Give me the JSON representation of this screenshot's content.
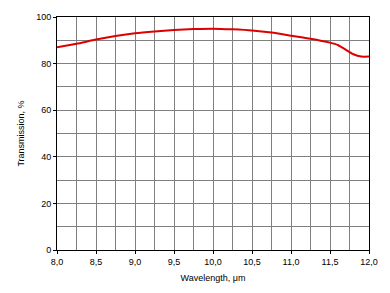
{
  "chart_data": {
    "type": "line",
    "x_label": "Wavelength, μm",
    "y_label": "Transmission, %",
    "x": [
      8.0,
      8.25,
      8.5,
      8.75,
      9.0,
      9.25,
      9.5,
      9.75,
      10.0,
      10.25,
      10.5,
      10.75,
      11.0,
      11.25,
      11.5,
      11.6,
      11.7,
      11.8,
      11.9,
      12.0
    ],
    "values": [
      87,
      88.5,
      90.3,
      91.8,
      93,
      93.8,
      94.4,
      94.8,
      95,
      94.7,
      94.2,
      93.3,
      92,
      90.7,
      89,
      88,
      86,
      84,
      83,
      83
    ],
    "color": "#dd0000",
    "xlim": [
      8.0,
      12.0
    ],
    "xticks": [
      {
        "value": 8.0,
        "label": "8,0"
      },
      {
        "value": 8.5,
        "label": "8,5"
      },
      {
        "value": 9.0,
        "label": "9,0"
      },
      {
        "value": 9.5,
        "label": "9,5"
      },
      {
        "value": 10.0,
        "label": "10,0"
      },
      {
        "value": 10.5,
        "label": "10,5"
      },
      {
        "value": 11.0,
        "label": "11,0"
      },
      {
        "value": 11.5,
        "label": "11,5"
      },
      {
        "value": 12.0,
        "label": "12,0"
      }
    ],
    "ylim": [
      0,
      100
    ],
    "yticks": [
      0,
      20,
      40,
      60,
      80,
      100
    ],
    "grid": true
  }
}
